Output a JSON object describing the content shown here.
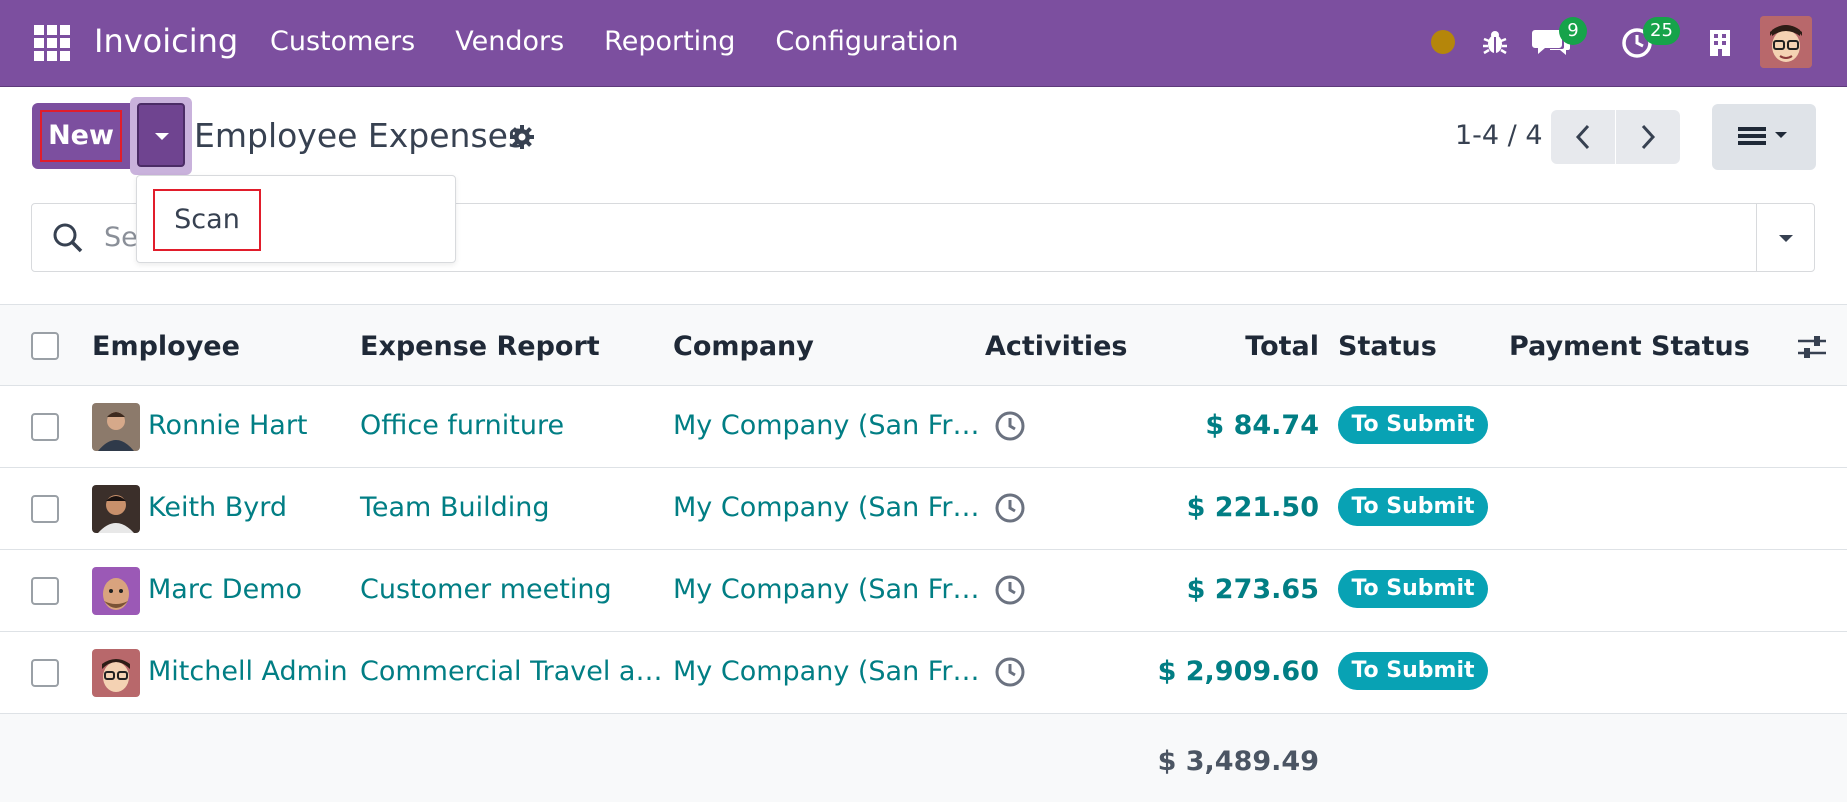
{
  "navbar": {
    "brand": "Invoicing",
    "menu": [
      "Customers",
      "Vendors",
      "Reporting",
      "Configuration"
    ],
    "messages_badge": "9",
    "activities_badge": "25"
  },
  "control_panel": {
    "new_label": "New",
    "title": "Employee Expenses",
    "pager": "1-4 / 4",
    "dropdown_items": [
      "Scan"
    ]
  },
  "search": {
    "visible_text": "Se"
  },
  "table": {
    "headers": {
      "employee": "Employee",
      "expense_report": "Expense Report",
      "company": "Company",
      "activities": "Activities",
      "total": "Total",
      "status": "Status",
      "payment_status": "Payment Status"
    },
    "rows": [
      {
        "employee": "Ronnie Hart",
        "report": "Office furniture",
        "company": "My Company (San Fr…",
        "total": "$ 84.74",
        "status": "To Submit",
        "avatar_color": "#6b4f3a"
      },
      {
        "employee": "Keith Byrd",
        "report": "Team Building",
        "company": "My Company (San Fr…",
        "total": "$ 221.50",
        "status": "To Submit",
        "avatar_color": "#4a3a30"
      },
      {
        "employee": "Marc Demo",
        "report": "Customer meeting",
        "company": "My Company (San Fr…",
        "total": "$ 273.65",
        "status": "To Submit",
        "avatar_color": "#9b59b6"
      },
      {
        "employee": "Mitchell Admin",
        "report": "Commercial Travel a…",
        "company": "My Company (San Fr…",
        "total": "$ 2,909.60",
        "status": "To Submit",
        "avatar_color": "#b8686b"
      }
    ],
    "grand_total": "$ 3,489.49"
  },
  "colors": {
    "brand": "#7c4f9f",
    "link": "#017e84",
    "status": "#08a2b4",
    "badge": "#16a34a",
    "highlight": "#e11d2b"
  }
}
